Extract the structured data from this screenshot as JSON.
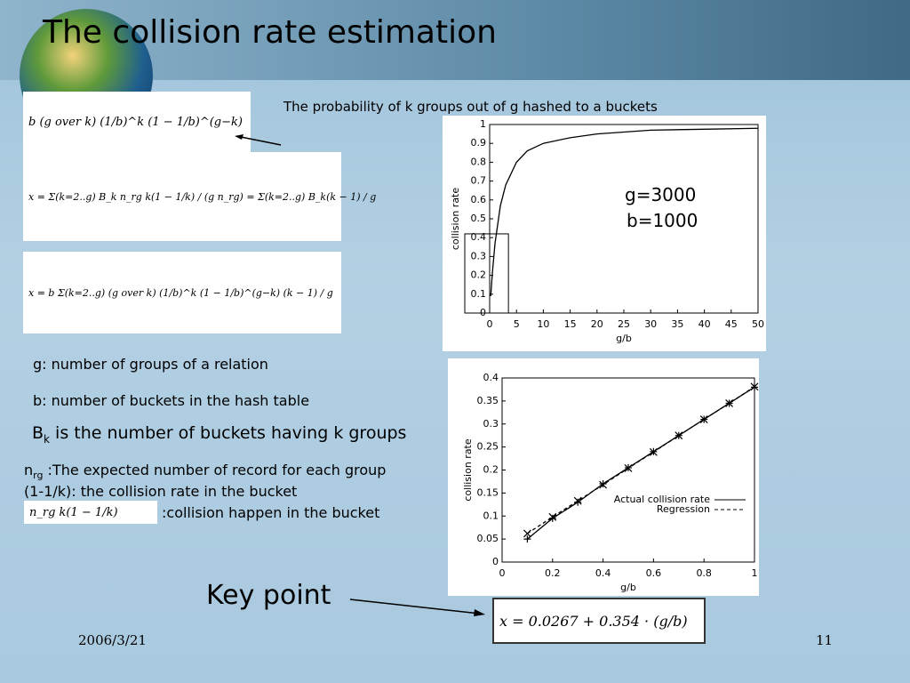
{
  "title": "The collision rate estimation",
  "caption": "The probability of k groups out of g hashed to a buckets",
  "formulas": [
    "b (g over k) (1/b)^k (1 − 1/b)^(g−k)",
    "x = Σ(k=2..g) B_k n_rg k(1 − 1/k) / (g n_rg) = Σ(k=2..g) B_k(k − 1) / g",
    "x = b Σ(k=2..g) (g over k) (1/b)^k (1 − 1/b)^(g−k) (k − 1) / g",
    "n_rg k(1 − 1/k)",
    "x = 0.0267 + 0.354 · (g/b)"
  ],
  "params": [
    "g=3000",
    "b=1000"
  ],
  "notes": {
    "g_def": "g: number of groups of a relation",
    "b_def": "b: number of buckets in the hash table",
    "bk": {
      "base": "B",
      "sub": "k",
      "text": " is the number of buckets having k groups"
    },
    "nrg": {
      "base": "n",
      "sub": "rg",
      "text": " :The expected number of record for each group"
    },
    "rate": "(1-1/k): the collision rate in the bucket",
    "happen": ":collision happen in the bucket"
  },
  "key_point": "Key point",
  "date": "2006/3/21",
  "page": "11",
  "chart_data": [
    {
      "type": "line",
      "x_label": "g/b",
      "y_label": "collision rate",
      "x": [
        0.2,
        0.5,
        1,
        2,
        3,
        5,
        7,
        10,
        15,
        20,
        30,
        40,
        50
      ],
      "series": [
        {
          "color": "#000000",
          "values": [
            0.09,
            0.21,
            0.37,
            0.57,
            0.68,
            0.8,
            0.86,
            0.9,
            0.93,
            0.95,
            0.97,
            0.975,
            0.98
          ]
        }
      ],
      "xlim": [
        0,
        50
      ],
      "xticks": [
        0,
        5,
        10,
        15,
        20,
        25,
        30,
        35,
        40,
        45,
        50
      ],
      "ylim": [
        0,
        1
      ],
      "yticks": [
        0,
        0.1,
        0.2,
        0.3,
        0.4,
        0.5,
        0.6,
        0.7,
        0.8,
        0.9,
        1
      ]
    },
    {
      "type": "line",
      "x_label": "g/b",
      "y_label": "collision rate",
      "x": [
        0.1,
        0.2,
        0.3,
        0.4,
        0.5,
        0.6,
        0.7,
        0.8,
        0.9,
        1
      ],
      "series": [
        {
          "name": "Actual collision rate",
          "color": "#000000",
          "marker": "+",
          "dashed": false,
          "values": [
            0.05,
            0.095,
            0.13,
            0.17,
            0.205,
            0.24,
            0.275,
            0.31,
            0.345,
            0.38
          ]
        },
        {
          "name": "Regression",
          "color": "#000000",
          "marker": "x",
          "dashed": true,
          "values": [
            0.062,
            0.098,
            0.133,
            0.168,
            0.204,
            0.239,
            0.275,
            0.31,
            0.345,
            0.381
          ]
        }
      ],
      "xlim": [
        0,
        1
      ],
      "xticks": [
        0,
        0.2,
        0.4,
        0.6,
        0.8,
        1
      ],
      "ylim": [
        0,
        0.4
      ],
      "yticks": [
        0,
        0.05,
        0.1,
        0.15,
        0.2,
        0.25,
        0.3,
        0.35,
        0.4
      ],
      "legend": "lower right"
    }
  ]
}
